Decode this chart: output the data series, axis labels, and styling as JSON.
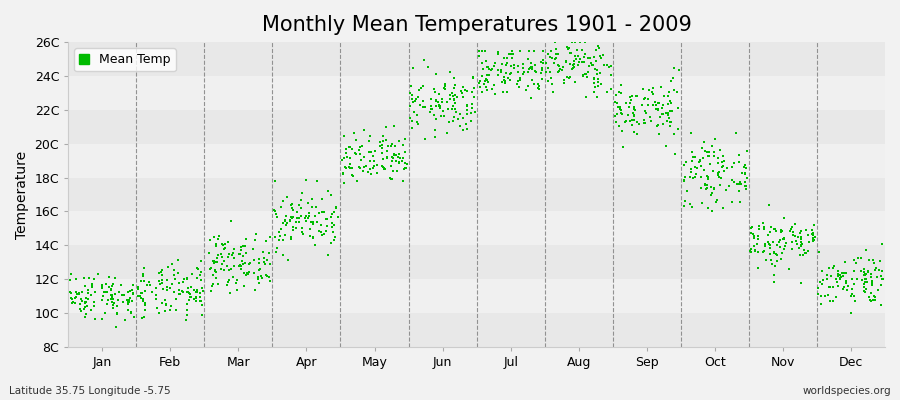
{
  "title": "Monthly Mean Temperatures 1901 - 2009",
  "ylabel": "Temperature",
  "footnote_left": "Latitude 35.75 Longitude -5.75",
  "footnote_right": "worldspecies.org",
  "legend_label": "Mean Temp",
  "ytick_labels": [
    "8C",
    "10C",
    "12C",
    "14C",
    "16C",
    "18C",
    "20C",
    "22C",
    "24C",
    "26C"
  ],
  "ytick_values": [
    8,
    10,
    12,
    14,
    16,
    18,
    20,
    22,
    24,
    26
  ],
  "ylim": [
    8,
    26
  ],
  "months": [
    "Jan",
    "Feb",
    "Mar",
    "Apr",
    "May",
    "Jun",
    "Jul",
    "Aug",
    "Sep",
    "Oct",
    "Nov",
    "Dec"
  ],
  "month_centers": [
    1,
    2,
    3,
    4,
    5,
    6,
    7,
    8,
    9,
    10,
    11,
    12
  ],
  "background_color": "#f2f2f2",
  "plot_bg_color_light": "#f0f0f0",
  "plot_bg_color_dark": "#e8e8e8",
  "dot_color": "#00bb00",
  "dot_size": 2.5,
  "title_fontsize": 15,
  "axis_fontsize": 10,
  "tick_fontsize": 9,
  "monthly_mean": [
    11.0,
    11.2,
    13.0,
    15.5,
    19.0,
    22.3,
    24.3,
    24.6,
    22.0,
    18.2,
    14.2,
    12.0
  ],
  "monthly_std": [
    0.7,
    0.8,
    0.8,
    0.9,
    0.8,
    0.9,
    0.8,
    0.8,
    0.9,
    0.9,
    0.8,
    0.8
  ],
  "monthly_min": [
    8.5,
    8.5,
    10.5,
    12.5,
    16.5,
    19.5,
    22.0,
    22.5,
    19.0,
    15.5,
    11.0,
    10.0
  ],
  "monthly_max": [
    13.5,
    14.5,
    15.5,
    18.5,
    21.5,
    25.5,
    25.5,
    26.0,
    24.5,
    22.0,
    17.5,
    14.5
  ],
  "n_years": 109
}
